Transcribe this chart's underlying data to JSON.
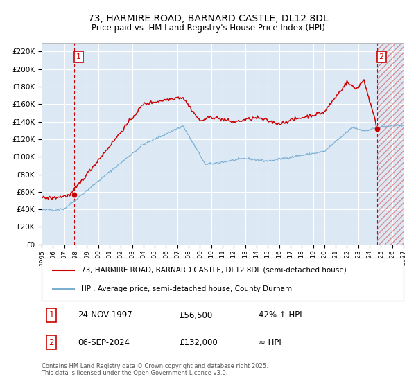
{
  "title": "73, HARMIRE ROAD, BARNARD CASTLE, DL12 8DL",
  "subtitle": "Price paid vs. HM Land Registry's House Price Index (HPI)",
  "legend_line1": "73, HARMIRE ROAD, BARNARD CASTLE, DL12 8DL (semi-detached house)",
  "legend_line2": "HPI: Average price, semi-detached house, County Durham",
  "annotation1_date": "24-NOV-1997",
  "annotation1_price": "£56,500",
  "annotation1_hpi": "42% ↑ HPI",
  "annotation2_date": "06-SEP-2024",
  "annotation2_price": "£132,000",
  "annotation2_hpi": "≈ HPI",
  "footnote": "Contains HM Land Registry data © Crown copyright and database right 2025.\nThis data is licensed under the Open Government Licence v3.0.",
  "hpi_color": "#7aafd4",
  "price_color": "#cc0000",
  "vline_color": "#cc0000",
  "plot_bg_color": "#dce9f5",
  "grid_color": "#ffffff",
  "ylim_max": 230000,
  "ytick_step": 20000,
  "sale1_year": 1997.9,
  "sale1_price": 56500,
  "sale2_year": 2024.68,
  "sale2_price": 132000
}
